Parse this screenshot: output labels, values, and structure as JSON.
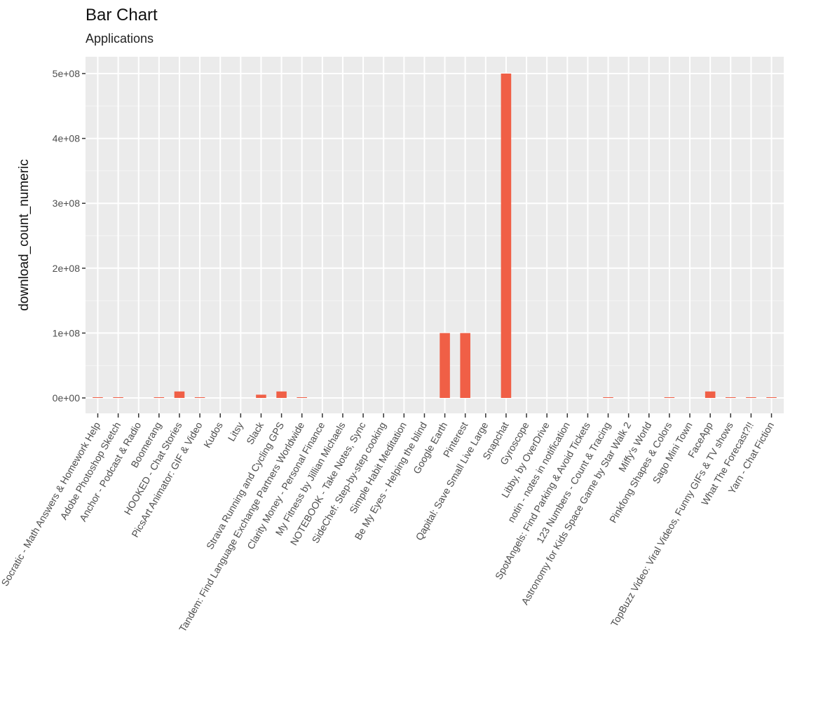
{
  "chart_data": {
    "type": "bar",
    "title": "Bar Chart",
    "subtitle": "Applications",
    "xlabel": "",
    "ylabel": "download_count_numeric",
    "ylim": [
      -25000000,
      500000000
    ],
    "yticks": [
      0,
      100000000,
      200000000,
      300000000,
      400000000,
      500000000
    ],
    "ytick_labels": [
      "0e+00",
      "1e+08",
      "2e+08",
      "3e+08",
      "4e+08",
      "5e+08"
    ],
    "grid": true,
    "legend": "none",
    "categories": [
      "Socratic - Math Answers & Homework Help",
      "Adobe Photoshop Sketch",
      "Anchor - Podcast & Radio",
      "Boomerang",
      "HOOKED - Chat Stories",
      "PicsArt Animator: GIF & Video",
      "Kudos",
      "Litsy",
      "Slack",
      "Strava Running and Cycling GPS",
      "Tandem: Find Language Exchange Partners Worldwide",
      "Clarity Money - Personal Finance",
      "My Fitness by Jillian Michaels",
      "NOTEBOOK - Take Notes, Sync",
      "SideChef: Step-by-step cooking",
      "Simple Habit Meditation",
      "Be My Eyes - Helping the blind",
      "Google Earth",
      "Pinterest",
      "Qapital: Save Small Live Large",
      "Snapchat",
      "Gyroscope",
      "Libby, by OverDrive",
      "notin - notes in notification",
      "SpotAngels: Find Parking & Avoid Tickets",
      "123 Numbers - Count & Tracing",
      "Astronomy for Kids   Space Game by Star Walk 2",
      "Miffy's World",
      "Pinkfong Shapes & Colors",
      "Sago Mini Town",
      "FaceApp",
      "TopBuzz Video: Viral Videos, Funny GIFs & TV shows",
      "What The Forecast?!!",
      "Yarn - Chat Fiction"
    ],
    "values": [
      1000000,
      500000,
      0,
      1000000,
      10000000,
      500000,
      0,
      0,
      5000000,
      10000000,
      500000,
      0,
      0,
      0,
      0,
      0,
      0,
      100000000,
      100000000,
      0,
      500000000,
      0,
      0,
      0,
      0,
      500000,
      0,
      0,
      500000,
      0,
      10000000,
      500000,
      500000,
      500000
    ],
    "colors": {
      "bar": "#F05F46",
      "panel": "#EBEBEB",
      "grid_major": "#FFFFFF",
      "grid_minor": "#F5F5F5",
      "tick": "#333333"
    }
  }
}
